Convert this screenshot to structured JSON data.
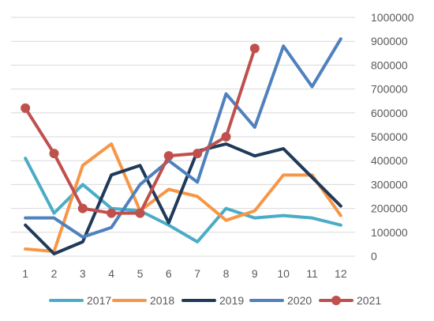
{
  "chart_data": {
    "type": "line",
    "title": "",
    "xlabel": "",
    "ylabel": "",
    "categories": [
      "1",
      "2",
      "3",
      "4",
      "5",
      "6",
      "7",
      "8",
      "9",
      "10",
      "11",
      "12"
    ],
    "ylim": [
      0,
      1000000
    ],
    "yticks": [
      0,
      100000,
      200000,
      300000,
      400000,
      500000,
      600000,
      700000,
      800000,
      900000,
      1000000
    ],
    "ytick_labels": [
      "0",
      "100000",
      "200000",
      "300000",
      "400000",
      "500000",
      "600000",
      "700000",
      "800000",
      "900000",
      "1000000"
    ],
    "y_axis_side": "right",
    "grid": "horizontal",
    "legend_position": "bottom",
    "series": [
      {
        "name": "2017",
        "color": "#4BACC6",
        "markers": false,
        "values": [
          410000,
          180000,
          300000,
          200000,
          190000,
          130000,
          60000,
          200000,
          160000,
          170000,
          160000,
          130000
        ]
      },
      {
        "name": "2018",
        "color": "#F79646",
        "markers": false,
        "values": [
          30000,
          20000,
          380000,
          470000,
          190000,
          280000,
          250000,
          150000,
          190000,
          340000,
          340000,
          170000
        ]
      },
      {
        "name": "2019",
        "color": "#1F3A5A",
        "markers": false,
        "values": [
          130000,
          10000,
          60000,
          340000,
          380000,
          140000,
          440000,
          470000,
          420000,
          450000,
          330000,
          210000
        ]
      },
      {
        "name": "2020",
        "color": "#4F81BD",
        "markers": false,
        "values": [
          160000,
          160000,
          80000,
          120000,
          300000,
          400000,
          310000,
          680000,
          540000,
          880000,
          710000,
          910000
        ]
      },
      {
        "name": "2021",
        "color": "#C0504D",
        "markers": true,
        "values": [
          620000,
          430000,
          200000,
          180000,
          180000,
          420000,
          430000,
          500000,
          870000,
          null,
          null,
          null
        ]
      }
    ]
  }
}
